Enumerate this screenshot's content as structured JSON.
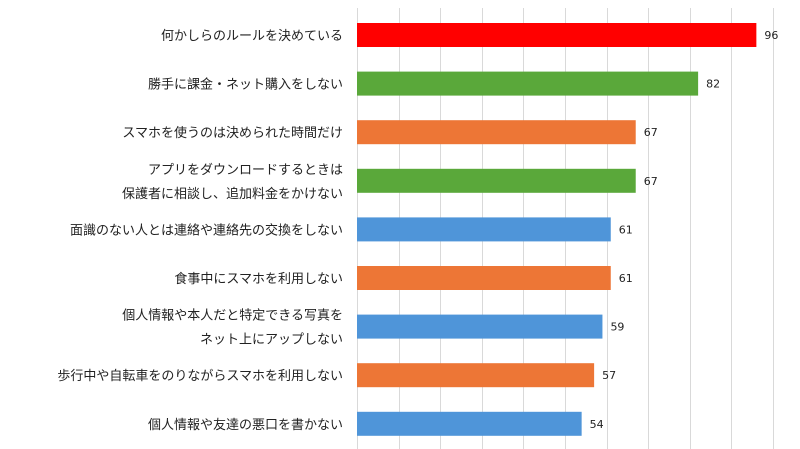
{
  "chart_data": {
    "type": "bar",
    "orientation": "horizontal",
    "categories": [
      [
        "何かしらのルールを決めている"
      ],
      [
        "勝手に課金・ネット購入をしない"
      ],
      [
        "スマホを使うのは決められた時間だけ"
      ],
      [
        "アプリをダウンロードするときは",
        "保護者に相談し、追加料金をかけない"
      ],
      [
        "面識のない人とは連絡や連絡先の交換をしない"
      ],
      [
        "食事中にスマホを利用しない"
      ],
      [
        "個人情報や本人だと特定できる写真を",
        "ネット上にアップしない"
      ],
      [
        "歩行中や自転車をのりながらスマホを利用しない"
      ],
      [
        "個人情報や友達の悪口を書かない"
      ]
    ],
    "values": [
      96,
      82,
      67,
      67,
      61,
      61,
      59,
      57,
      54
    ],
    "colors": [
      "#ff0000",
      "#5aa83a",
      "#ed7636",
      "#5aa83a",
      "#4f95d9",
      "#ed7636",
      "#4f95d9",
      "#ed7636",
      "#4f95d9"
    ],
    "xlim": [
      0,
      100
    ],
    "grid": true,
    "title": "",
    "xlabel": "",
    "ylabel": ""
  }
}
